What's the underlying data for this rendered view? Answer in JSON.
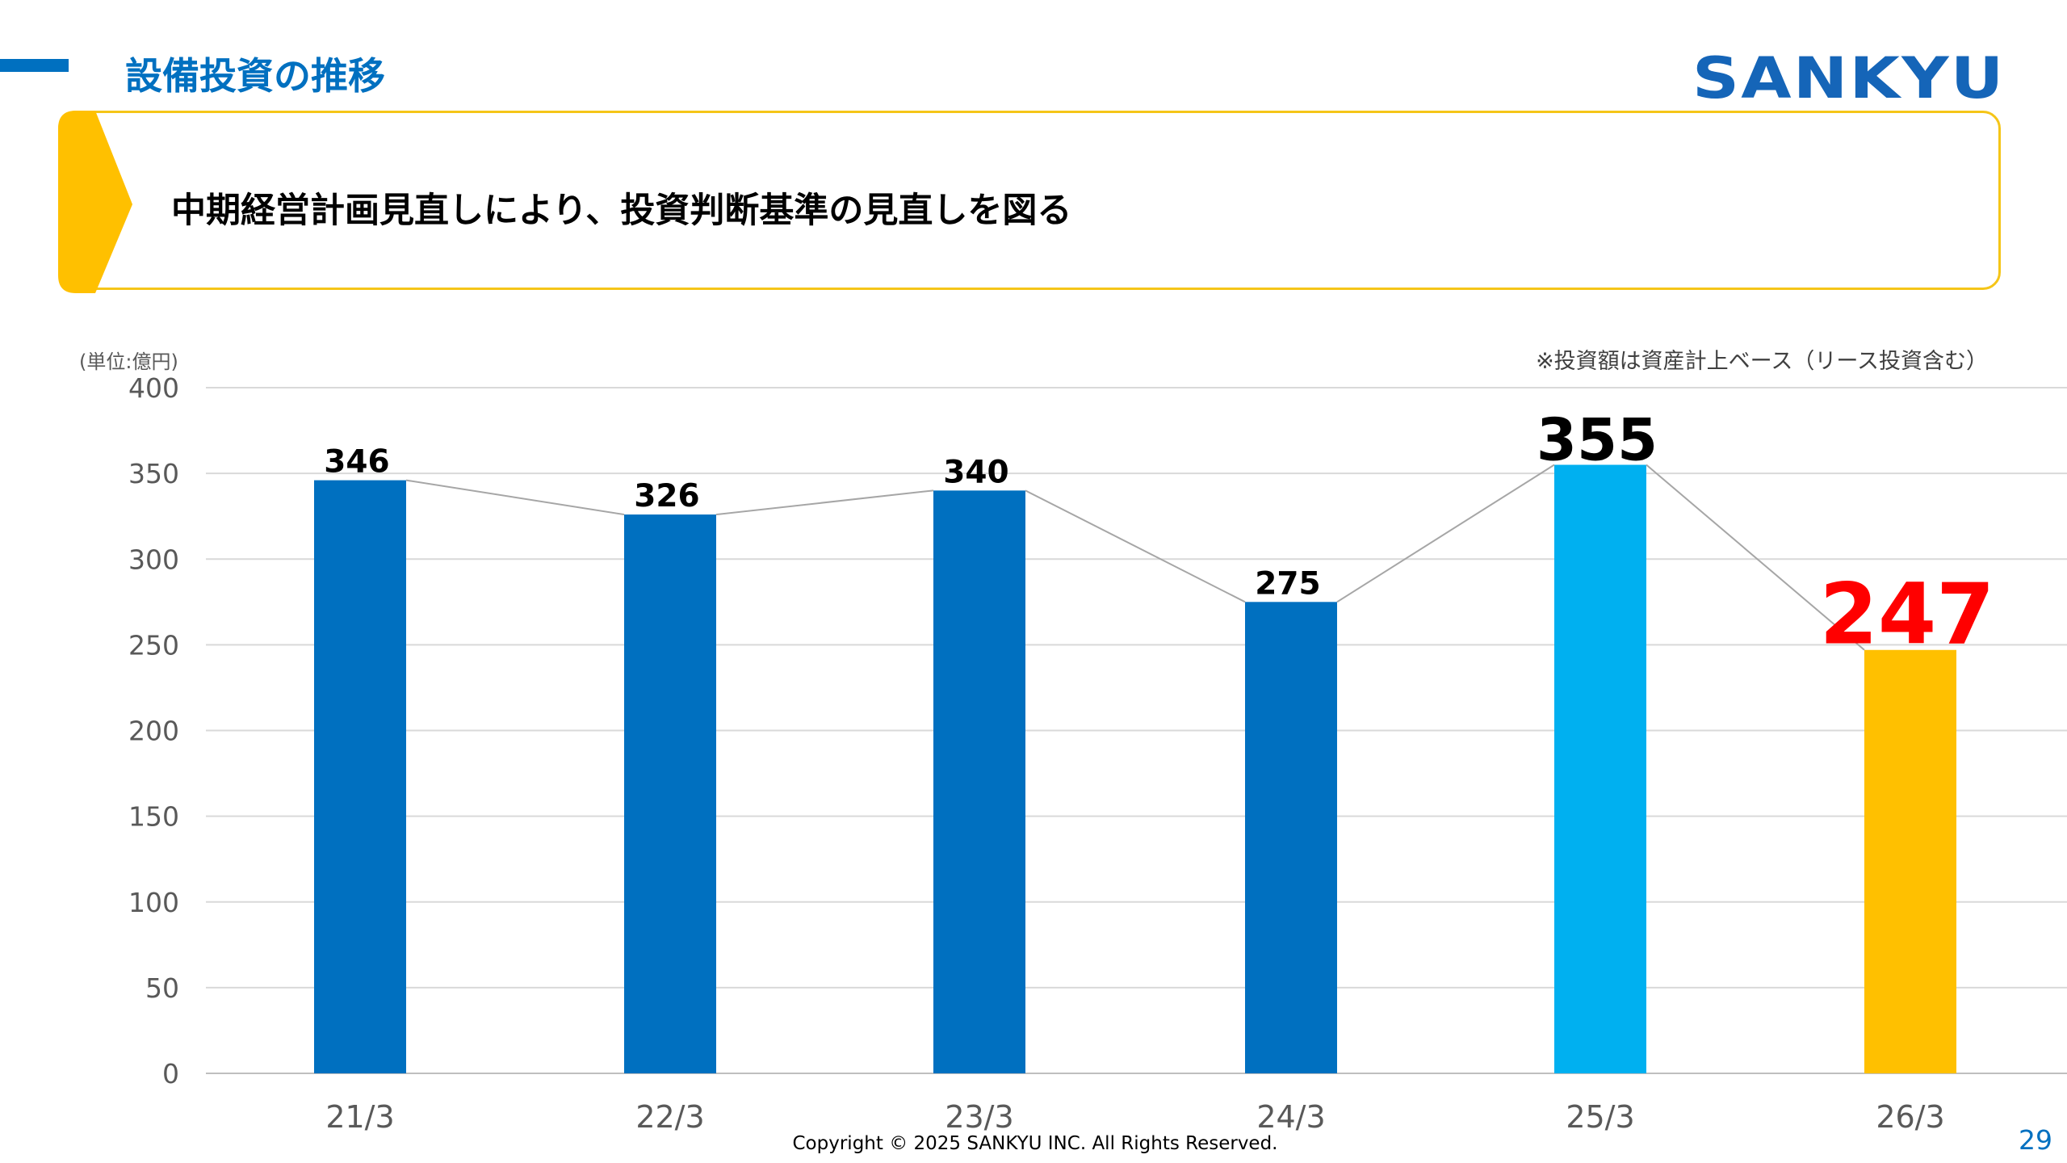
{
  "header": {
    "title": "設備投資の推移",
    "logo_text": "SANKYU",
    "headline": "中期経営計画見直しにより、投資判断基準の見直しを図る"
  },
  "chart_notes": {
    "unit": "(単位:億円)",
    "note": "※投資額は資産計上ベース（リース投資含む）"
  },
  "chart_data": {
    "type": "bar",
    "categories": [
      "21/3",
      "22/3",
      "23/3",
      "24/3",
      "25/3",
      "26/3"
    ],
    "values": [
      346,
      326,
      340,
      275,
      355,
      247
    ],
    "data_labels": [
      "346",
      "326",
      "340",
      "275",
      "355",
      "247"
    ],
    "bar_colors": [
      "#0070C0",
      "#0070C0",
      "#0070C0",
      "#0070C0",
      "#00B0F0",
      "#FFC000"
    ],
    "label_colors": [
      "#000000",
      "#000000",
      "#000000",
      "#000000",
      "#000000",
      "#FF0000"
    ],
    "connector_line": true,
    "ylim": [
      0,
      400
    ],
    "yticks": [
      0,
      50,
      100,
      150,
      200,
      250,
      300,
      350,
      400
    ],
    "grid": true,
    "xlabel": "",
    "ylabel": ""
  },
  "footer": {
    "copyright": "Copyright © 2025 SANKYU INC. All Rights Reserved.",
    "page_number": "29"
  },
  "colors": {
    "accent_blue": "#0070C0",
    "accent_yellow": "#FFC000",
    "highlight_red": "#FF0000"
  }
}
